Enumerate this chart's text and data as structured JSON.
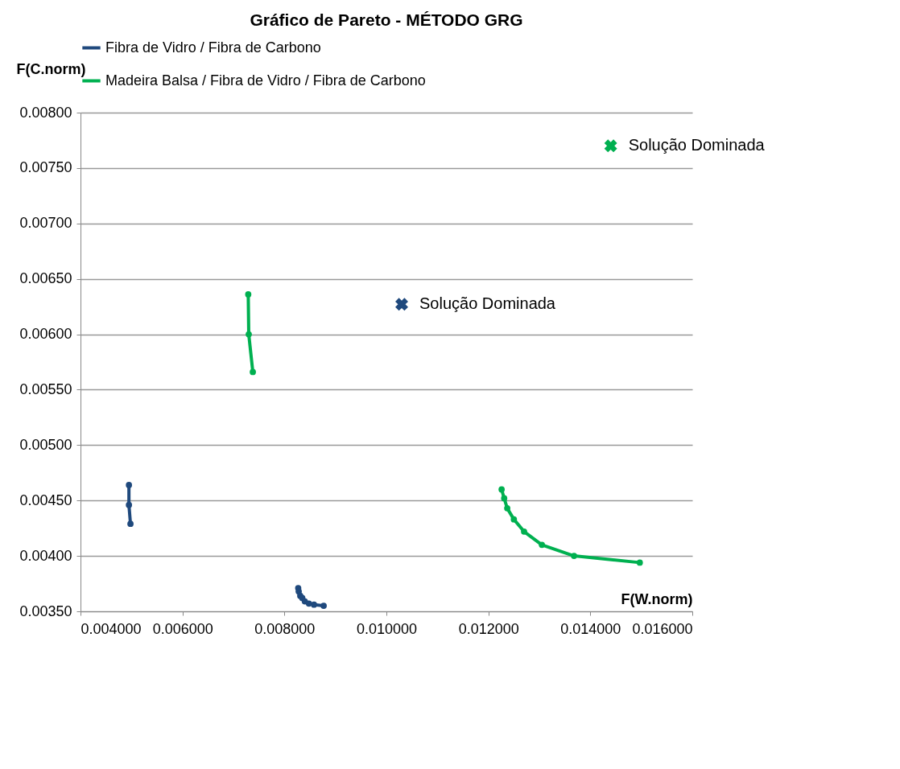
{
  "chart_data": {
    "type": "line",
    "title": "Gráfico de Pareto - MÉTODO GRG",
    "xlabel": "F(W.norm)",
    "ylabel": "F(C.norm)",
    "series": [
      {
        "name": "Fibra de Vidro / Fibra de Carbono",
        "color": "#1f497d",
        "x": [
          0.00495,
          0.00495,
          0.00498,
          null,
          0.00827,
          0.00828,
          0.00831,
          0.00835,
          0.0084,
          0.00848,
          0.00858,
          0.00877
        ],
        "values": [
          0.00464,
          0.00446,
          0.00429,
          null,
          0.00371,
          0.00368,
          0.00364,
          0.00362,
          0.00359,
          0.00357,
          0.00356,
          0.00355
        ]
      },
      {
        "name": "Madeira Balsa / Fibra de Vidro / Fibra de Carbono",
        "color": "#00b050",
        "x": [
          0.00729,
          0.0073,
          0.00738,
          null,
          0.01226,
          0.01231,
          0.01237,
          0.0125,
          0.0127,
          0.01305,
          0.01368,
          0.01497
        ],
        "values": [
          0.00636,
          0.006,
          0.00566,
          null,
          0.0046,
          0.00452,
          0.00443,
          0.00433,
          0.00422,
          0.0041,
          0.004,
          0.00394
        ]
      },
      {
        "type": "scatter",
        "marker": "cross",
        "color": "#1f497d",
        "x": [
          0.0103
        ],
        "values": [
          0.00627
        ]
      },
      {
        "type": "scatter",
        "marker": "cross",
        "color": "#00b050",
        "x": [
          0.0144
        ],
        "values": [
          0.0077
        ]
      }
    ],
    "annotations": [
      {
        "text": "Solução Dominada",
        "x": 0.0103,
        "y": 0.00627
      },
      {
        "text": "Solução Dominada",
        "x": 0.0144,
        "y": 0.0077
      }
    ],
    "xlim": [
      0.004,
      0.016
    ],
    "xticks": [
      {
        "value": 0.004,
        "label": "0.004000"
      },
      {
        "value": 0.006,
        "label": "0.006000"
      },
      {
        "value": 0.008,
        "label": "0.008000"
      },
      {
        "value": 0.01,
        "label": "0.010000"
      },
      {
        "value": 0.012,
        "label": "0.012000"
      },
      {
        "value": 0.014,
        "label": "0.014000"
      },
      {
        "value": 0.016,
        "label": "0.016000"
      }
    ],
    "ylim": [
      0.0035,
      0.008
    ],
    "yticks": [
      {
        "value": 0.0035,
        "label": "0.00350"
      },
      {
        "value": 0.004,
        "label": "0.00400"
      },
      {
        "value": 0.0045,
        "label": "0.00450"
      },
      {
        "value": 0.005,
        "label": "0.00500"
      },
      {
        "value": 0.0055,
        "label": "0.00550"
      },
      {
        "value": 0.006,
        "label": "0.00600"
      },
      {
        "value": 0.0065,
        "label": "0.00650"
      },
      {
        "value": 0.007,
        "label": "0.00700"
      },
      {
        "value": 0.0075,
        "label": "0.00750"
      },
      {
        "value": 0.008,
        "label": "0.00800"
      }
    ],
    "grid": "y",
    "legend": "top",
    "marker": "circle",
    "line_style": "solid"
  }
}
